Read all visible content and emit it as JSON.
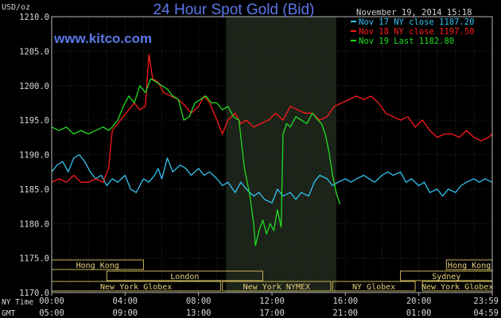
{
  "chart_data": {
    "type": "line",
    "title": "24 Hour Spot Gold (Bid)",
    "ylabel": "USD/oz",
    "watermark": "www.kitco.com",
    "timestamp": "November 19, 2014 15:18",
    "ylim": [
      1170,
      1210
    ],
    "yticks": [
      "1210.0",
      "1205.0",
      "1200.0",
      "1195.0",
      "1190.0",
      "1185.0",
      "1180.0",
      "1175.0",
      "1170.0"
    ],
    "x_row_labels": {
      "ny_time": "NY Time",
      "gmt": "GMT"
    },
    "x_ticks_ny": [
      "00:00",
      "04:00",
      "08:00",
      "12:00",
      "16:00",
      "20:00",
      "23:59"
    ],
    "x_ticks_gmt": [
      "05:00",
      "09:00",
      "13:00",
      "17:00",
      "21:00",
      "01:00",
      "04:59"
    ],
    "x_range_hours": [
      0,
      24
    ],
    "highlight_band_hours": [
      9.5,
      15.5
    ],
    "grid": true,
    "legend_placement": "top-right",
    "markets": [
      {
        "name": "Hong Kong",
        "start": 0,
        "end": 5,
        "row": 0
      },
      {
        "name": "Hong Kong",
        "start": 21.5,
        "end": 24,
        "row": 0
      },
      {
        "name": "London",
        "start": 3,
        "end": 11.5,
        "row": 1
      },
      {
        "name": "Sydney",
        "start": 19,
        "end": 24,
        "row": 1
      },
      {
        "name": "New York Globex",
        "start": 0,
        "end": 9.2,
        "row": 2
      },
      {
        "name": "New York NYMEX",
        "start": 9.3,
        "end": 15.2,
        "row": 2
      },
      {
        "name": "NY Globex",
        "start": 15.3,
        "end": 19.8,
        "row": 2
      },
      {
        "name": "New York Globex",
        "start": 20.2,
        "end": 24,
        "row": 2
      }
    ],
    "series": [
      {
        "name": "Nov 17 NY close 1187.20",
        "color": "#33c3f0",
        "x": [
          0,
          0.3,
          0.6,
          0.9,
          1.2,
          1.5,
          1.8,
          2.1,
          2.4,
          2.7,
          3.0,
          3.3,
          3.6,
          4.0,
          4.3,
          4.6,
          5.0,
          5.3,
          5.6,
          5.8,
          6.0,
          6.3,
          6.6,
          7.0,
          7.3,
          7.6,
          8.0,
          8.3,
          8.6,
          9.0,
          9.3,
          9.6,
          10.0,
          10.3,
          10.6,
          11.0,
          11.3,
          11.6,
          12.0,
          12.3,
          12.6,
          13.0,
          13.3,
          13.6,
          14.0,
          14.3,
          14.6,
          15.0,
          15.3,
          15.6,
          16.0,
          16.3,
          16.6,
          17.0,
          17.3,
          17.6,
          18.0,
          18.3,
          18.6,
          19.0,
          19.3,
          19.6,
          20.0,
          20.3,
          20.6,
          21.0,
          21.3,
          21.6,
          22.0,
          22.3,
          22.6,
          23.0,
          23.3,
          23.6,
          23.99
        ],
        "values": [
          1187.5,
          1188.5,
          1189.0,
          1187.5,
          1189.5,
          1190.0,
          1189.0,
          1187.5,
          1186.5,
          1187.0,
          1185.5,
          1186.5,
          1186.0,
          1187.0,
          1185.0,
          1184.5,
          1186.5,
          1186.0,
          1187.0,
          1188.0,
          1186.5,
          1189.5,
          1187.5,
          1188.5,
          1188.0,
          1187.0,
          1188.0,
          1187.0,
          1187.5,
          1186.5,
          1185.5,
          1186.0,
          1184.5,
          1186.0,
          1185.0,
          1184.0,
          1184.5,
          1183.5,
          1183.0,
          1185.0,
          1184.0,
          1184.5,
          1183.5,
          1184.5,
          1184.0,
          1186.0,
          1187.0,
          1186.5,
          1185.5,
          1186.0,
          1186.5,
          1186.0,
          1186.5,
          1187.0,
          1186.5,
          1186.0,
          1187.0,
          1187.5,
          1187.0,
          1187.5,
          1186.0,
          1186.5,
          1185.5,
          1186.0,
          1184.5,
          1185.0,
          1184.0,
          1185.0,
          1184.5,
          1185.5,
          1186.0,
          1186.5,
          1186.0,
          1186.5,
          1186.0
        ]
      },
      {
        "name": "Nov 18 NY close 1197.50",
        "color": "#ff1a1a",
        "x": [
          0,
          0.4,
          0.8,
          1.2,
          1.6,
          2.0,
          2.4,
          2.8,
          3.1,
          3.3,
          3.6,
          3.9,
          4.2,
          4.5,
          4.8,
          5.1,
          5.3,
          5.5,
          5.8,
          6.1,
          6.5,
          6.9,
          7.3,
          7.6,
          8.0,
          8.3,
          8.6,
          9.0,
          9.3,
          9.6,
          10.0,
          10.3,
          10.6,
          11.0,
          11.4,
          11.8,
          12.2,
          12.6,
          13.0,
          13.4,
          13.8,
          14.2,
          14.6,
          15.0,
          15.4,
          15.8,
          16.2,
          16.6,
          17.0,
          17.4,
          17.8,
          18.2,
          18.6,
          19.0,
          19.4,
          19.8,
          20.2,
          20.6,
          21.0,
          21.4,
          21.8,
          22.2,
          22.6,
          23.0,
          23.4,
          23.8,
          23.99
        ],
        "values": [
          1186.0,
          1186.5,
          1186.0,
          1187.0,
          1186.0,
          1186.0,
          1186.5,
          1186.0,
          1188.0,
          1193.5,
          1194.5,
          1195.5,
          1196.5,
          1197.5,
          1196.5,
          1197.0,
          1204.5,
          1201.0,
          1200.5,
          1199.0,
          1198.5,
          1198.0,
          1197.0,
          1196.0,
          1197.0,
          1198.5,
          1197.5,
          1195.0,
          1193.0,
          1195.0,
          1196.0,
          1194.5,
          1195.0,
          1194.0,
          1194.5,
          1195.0,
          1196.0,
          1195.0,
          1197.0,
          1196.5,
          1196.0,
          1196.0,
          1195.0,
          1195.5,
          1197.0,
          1197.5,
          1198.0,
          1198.5,
          1198.0,
          1198.5,
          1197.5,
          1196.0,
          1195.5,
          1195.0,
          1195.5,
          1194.0,
          1195.0,
          1193.5,
          1192.5,
          1193.0,
          1193.0,
          1192.5,
          1193.5,
          1192.5,
          1192.0,
          1192.5,
          1193.0
        ]
      },
      {
        "name": "Nov 19 Last 1182.80",
        "color": "#22dd22",
        "x": [
          0,
          0.4,
          0.8,
          1.2,
          1.6,
          2.0,
          2.4,
          2.8,
          3.1,
          3.3,
          3.6,
          3.9,
          4.2,
          4.5,
          4.8,
          5.1,
          5.4,
          5.7,
          6.0,
          6.3,
          6.6,
          6.9,
          7.2,
          7.5,
          7.8,
          8.1,
          8.4,
          8.7,
          9.0,
          9.3,
          9.6,
          9.9,
          10.2,
          10.5,
          10.8,
          11.0,
          11.1,
          11.3,
          11.5,
          11.7,
          11.9,
          12.1,
          12.3,
          12.5,
          12.6,
          12.8,
          13.0,
          13.3,
          13.6,
          13.9,
          14.2,
          14.5,
          14.7,
          14.9,
          15.1,
          15.3,
          15.5,
          15.7
        ],
        "values": [
          1194.0,
          1193.5,
          1194.0,
          1193.0,
          1193.5,
          1193.0,
          1193.5,
          1194.0,
          1193.5,
          1194.0,
          1195.0,
          1197.0,
          1198.5,
          1197.5,
          1200.0,
          1199.0,
          1201.0,
          1200.5,
          1200.0,
          1199.5,
          1198.5,
          1198.0,
          1195.0,
          1195.5,
          1197.5,
          1198.0,
          1198.5,
          1197.5,
          1197.5,
          1196.5,
          1197.0,
          1195.5,
          1195.0,
          1188.0,
          1184.0,
          1180.0,
          1176.8,
          1179.0,
          1180.5,
          1178.5,
          1180.0,
          1179.0,
          1182.0,
          1179.5,
          1193.0,
          1194.5,
          1194.0,
          1195.5,
          1195.0,
          1194.5,
          1196.0,
          1195.0,
          1194.5,
          1193.0,
          1190.5,
          1187.0,
          1184.5,
          1182.8
        ]
      }
    ]
  }
}
